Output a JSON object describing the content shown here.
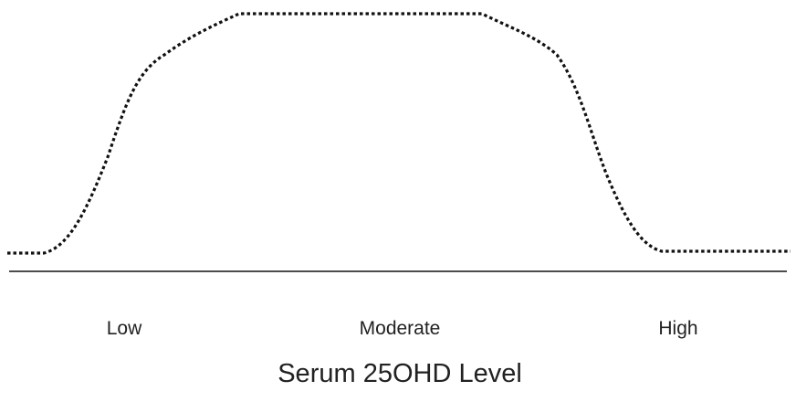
{
  "axis": {
    "categories": [
      "Low",
      "Moderate",
      "High"
    ],
    "title": "Serum 25OHD Level"
  }
}
